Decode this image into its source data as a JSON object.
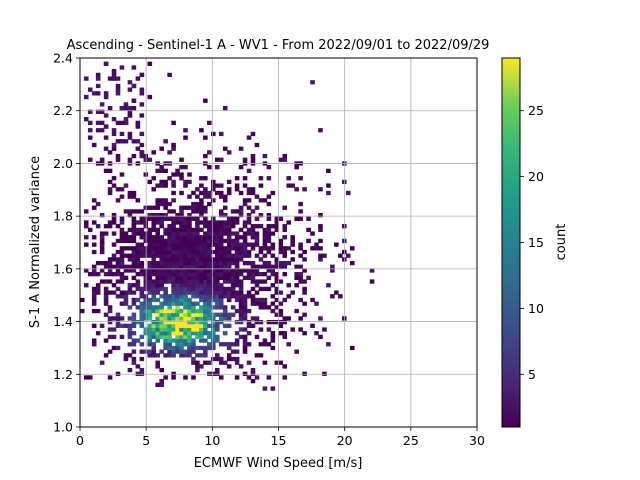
{
  "chart_data": {
    "type": "heatmap",
    "title": "Ascending - Sentinel-1 A - WV1 - From 2022/09/01 to 2022/09/29",
    "xlabel": "ECMWF Wind Speed [m/s]",
    "ylabel": "S-1 A Normalized variance",
    "xlim": [
      0,
      30
    ],
    "ylim": [
      1.0,
      2.4
    ],
    "xticks": [
      "0",
      "5",
      "10",
      "15",
      "20",
      "25",
      "30"
    ],
    "yticks": [
      "1.0",
      "1.2",
      "1.4",
      "1.6",
      "1.8",
      "2.0",
      "2.2",
      "2.4"
    ],
    "grid": true,
    "colorbar": {
      "label": "count",
      "colormap": "viridis",
      "range": [
        1,
        29
      ],
      "ticks": [
        "5",
        "10",
        "15",
        "20",
        "25"
      ]
    },
    "bins": {
      "x_width": 0.3,
      "y_width": 0.014
    },
    "density_core": {
      "x_center": 7.5,
      "y_center": 1.4,
      "peak_count": 28
    }
  }
}
